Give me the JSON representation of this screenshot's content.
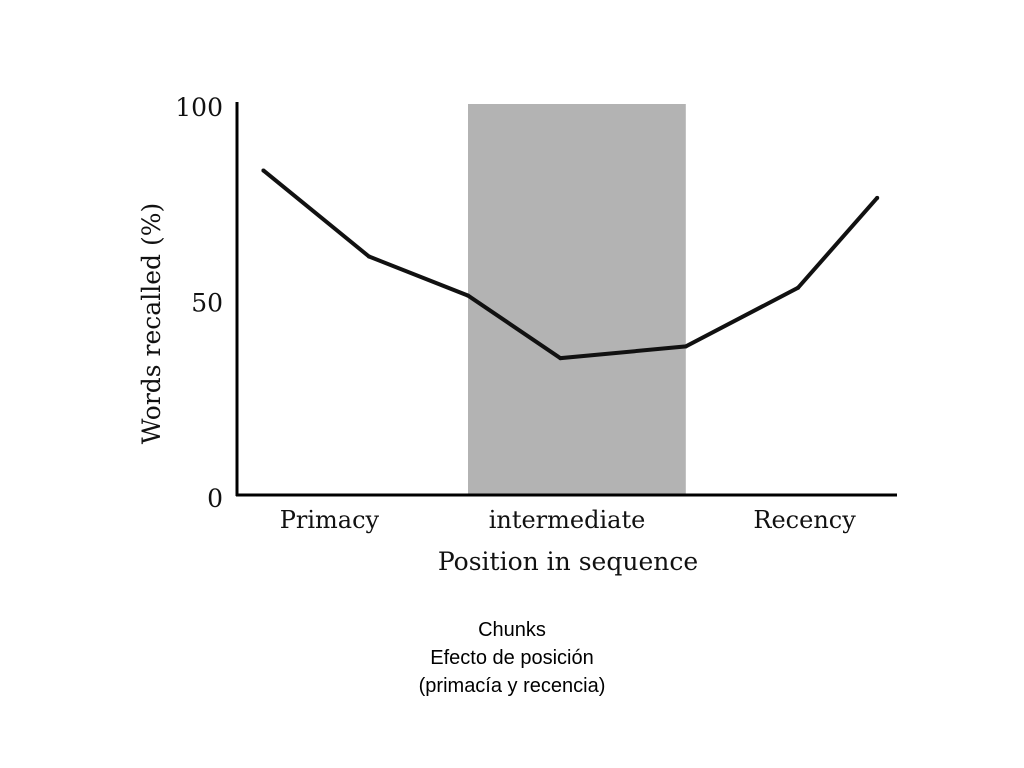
{
  "chart_data": {
    "type": "line",
    "xlabel": "Position in sequence",
    "ylabel": "Words recalled (%)",
    "ylim": [
      0,
      100
    ],
    "xlim": [
      0,
      10
    ],
    "yticks": [
      0,
      50,
      100
    ],
    "category_labels": [
      {
        "label": "Primacy",
        "x": 1.4
      },
      {
        "label": "intermediate",
        "x": 5.0
      },
      {
        "label": "Recency",
        "x": 8.6
      }
    ],
    "shaded_region": {
      "x_start": 3.5,
      "x_end": 6.8,
      "color": "#b3b3b3"
    },
    "series": [
      {
        "color": "#111111",
        "points": [
          {
            "x": 0.4,
            "y": 83
          },
          {
            "x": 2.0,
            "y": 61
          },
          {
            "x": 3.5,
            "y": 51
          },
          {
            "x": 4.9,
            "y": 35
          },
          {
            "x": 6.8,
            "y": 38
          },
          {
            "x": 8.5,
            "y": 53
          },
          {
            "x": 9.7,
            "y": 76
          }
        ]
      }
    ],
    "grid": false
  },
  "caption": {
    "lines": [
      "Chunks",
      "Efecto de posición",
      "(primacía y recencia)"
    ]
  }
}
